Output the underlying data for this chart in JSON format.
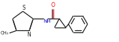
{
  "bg_color": "#ffffff",
  "bond_color": "#1a1a1a",
  "atom_colors": {
    "O": "#ff0000",
    "N": "#0000cd",
    "S": "#1a1a1a",
    "C": "#1a1a1a"
  },
  "figsize": [
    1.74,
    0.61
  ],
  "dpi": 100,
  "lw": 0.9,
  "fs": 5.0
}
